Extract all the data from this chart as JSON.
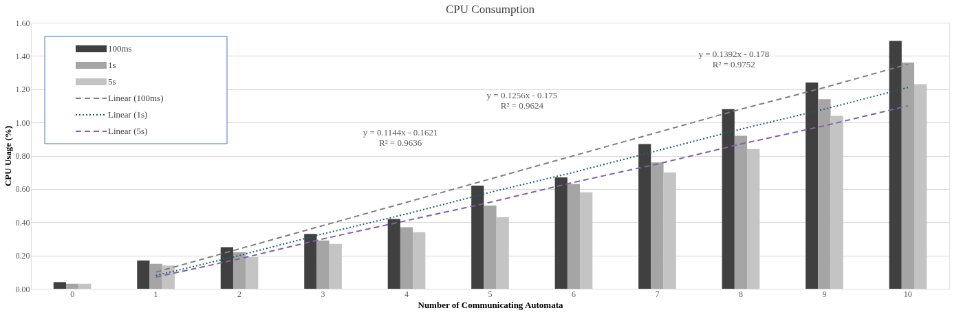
{
  "chart_data": {
    "type": "bar",
    "title": "CPU Consumption",
    "xlabel": "Number of Communicating Automata",
    "ylabel": "CPU Usage (%)",
    "categories": [
      "0",
      "1",
      "2",
      "3",
      "4",
      "5",
      "6",
      "7",
      "8",
      "9",
      "10"
    ],
    "series": [
      {
        "name": "100ms",
        "color": "#404040",
        "values": [
          0.04,
          0.17,
          0.25,
          0.33,
          0.42,
          0.62,
          0.67,
          0.87,
          1.08,
          1.24,
          1.49
        ]
      },
      {
        "name": "1s",
        "color": "#a5a5a5",
        "values": [
          0.03,
          0.15,
          0.22,
          0.29,
          0.37,
          0.5,
          0.63,
          0.76,
          0.92,
          1.14,
          1.36
        ]
      },
      {
        "name": "5s",
        "color": "#c4c4c4",
        "values": [
          0.03,
          0.14,
          0.19,
          0.27,
          0.34,
          0.43,
          0.58,
          0.7,
          0.84,
          1.04,
          1.23
        ]
      },
      {
        "name": "Linear (100ms)",
        "type": "line",
        "line_style": "dashed",
        "color": "#808080",
        "values": [
          null,
          0.1,
          0.24,
          0.38,
          0.52,
          0.66,
          0.8,
          0.94,
          1.08,
          1.21,
          1.35
        ]
      },
      {
        "name": "Linear (1s)",
        "type": "line",
        "line_style": "dotted",
        "color": "#1f5c6b",
        "values": [
          null,
          0.08,
          0.2,
          0.33,
          0.45,
          0.58,
          0.7,
          0.83,
          0.96,
          1.08,
          1.21
        ]
      },
      {
        "name": "Linear (5s)",
        "type": "line",
        "line_style": "dashed",
        "color": "#8064a2",
        "values": [
          null,
          0.07,
          0.18,
          0.3,
          0.41,
          0.52,
          0.64,
          0.75,
          0.87,
          0.98,
          1.1
        ]
      }
    ],
    "ylim": [
      0,
      1.6
    ],
    "yticks": [
      {
        "value": 0,
        "label": "0.00"
      },
      {
        "value": 0.2,
        "label": "0.20"
      },
      {
        "value": 0.4,
        "label": "0.40"
      },
      {
        "value": 0.6,
        "label": "0.60"
      },
      {
        "value": 0.8,
        "label": "0.80"
      },
      {
        "value": 1.0,
        "label": "1.00"
      },
      {
        "value": 1.2,
        "label": "1.20"
      },
      {
        "value": 1.4,
        "label": "1.40"
      },
      {
        "value": 1.6,
        "label": "1.60"
      }
    ],
    "grid": "y",
    "legend": "top left",
    "annotations": [
      "y = 0.1144x - 0.1621\nR² = 0.9636",
      "y = 0.1256x - 0.175\nR² = 0.9624",
      "y = 0.1392x - 0.178\nR² = 0.9752"
    ]
  }
}
